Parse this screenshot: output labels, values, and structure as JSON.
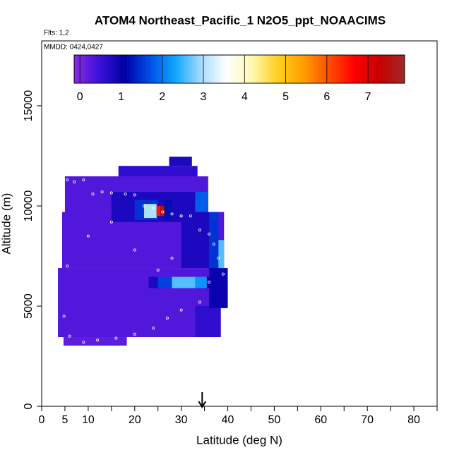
{
  "chart_data": {
    "type": "curtain",
    "title": "ATOM4 Northeast_Pacific_1 N2O5_ppt_NOAACIMS",
    "subtitle": "Flts: 1,2",
    "annotation": "MMDD: 0424,0427",
    "x_label": "Latitude (deg N)",
    "y_label": "Altitude (m)",
    "xlim": [
      0,
      85
    ],
    "ylim": [
      0,
      18240
    ],
    "xticks": [
      0,
      5,
      10,
      20,
      30,
      40,
      50,
      60,
      70,
      80
    ],
    "minor_xticks": [
      15,
      25,
      35,
      45,
      55,
      65,
      75,
      85
    ],
    "yticks": [
      0,
      5000,
      10000,
      15000
    ],
    "clim": [
      -0.14,
      7.89
    ],
    "cticks": [
      0,
      1,
      2,
      3,
      4,
      5,
      6,
      7
    ],
    "colormap": [
      "#8a2be2",
      "#3a10d8",
      "#0000a8",
      "#0050e8",
      "#10a8ff",
      "#a8dcff",
      "#ffffff",
      "#fff8b0",
      "#ffd020",
      "#ffa000",
      "#ff5000",
      "#ff0000",
      "#c80000",
      "#a02828"
    ],
    "cells": [
      [
        4.7,
        18.3,
        3030,
        3450,
        0.2
      ],
      [
        3.5,
        38.5,
        3450,
        6900,
        0.3
      ],
      [
        33,
        38.5,
        3450,
        5000,
        0.6
      ],
      [
        36,
        40,
        4900,
        6900,
        1.0
      ],
      [
        23,
        25,
        5900,
        6460,
        0.8
      ],
      [
        25,
        28,
        5900,
        6460,
        1.6
      ],
      [
        28,
        33,
        5900,
        6460,
        2.6
      ],
      [
        33,
        35.5,
        5900,
        6460,
        2.2
      ],
      [
        35.5,
        38.5,
        5900,
        6460,
        1.0
      ],
      [
        4.4,
        39.2,
        6900,
        9700,
        0.3
      ],
      [
        30,
        36,
        6900,
        9700,
        0.8
      ],
      [
        36,
        38,
        6900,
        9700,
        1.5
      ],
      [
        38,
        39.2,
        6900,
        8300,
        2.6
      ],
      [
        5,
        35.8,
        9700,
        11480,
        0.3
      ],
      [
        15,
        33,
        9200,
        10700,
        0.8
      ],
      [
        20,
        25,
        9300,
        10300,
        1.5
      ],
      [
        22,
        24.7,
        9400,
        10100,
        3.0
      ],
      [
        24.7,
        25.5,
        9500,
        10000,
        6.5
      ],
      [
        25.5,
        26.4,
        9500,
        10000,
        7.5
      ],
      [
        26.4,
        28,
        9300,
        10300,
        1.2
      ],
      [
        33,
        35.8,
        9700,
        10700,
        1.8
      ],
      [
        16.5,
        33.5,
        11480,
        12000,
        0.6
      ],
      [
        27.4,
        32.3,
        12000,
        12460,
        0.8
      ]
    ],
    "track": {
      "lat": [
        5.5,
        7,
        9,
        11,
        13,
        15,
        18,
        20,
        22,
        24,
        26,
        28,
        30,
        32,
        34,
        36,
        37,
        38,
        39,
        36,
        34,
        30,
        27,
        24,
        20,
        16,
        12,
        9,
        6,
        4.8,
        5.5,
        10,
        15,
        20,
        25,
        28,
        30,
        33,
        35
      ],
      "alt": [
        11300,
        11200,
        11300,
        10600,
        10700,
        10650,
        10600,
        10550,
        10000,
        9900,
        9700,
        9600,
        9500,
        9500,
        8800,
        8600,
        8100,
        7400,
        6600,
        6200,
        5200,
        4800,
        4400,
        3900,
        3600,
        3400,
        3300,
        3200,
        3500,
        4500,
        7000,
        8500,
        9200,
        7800,
        6800,
        7400,
        9500,
        12100,
        12400
      ]
    },
    "arrow_lat": 34.5
  }
}
